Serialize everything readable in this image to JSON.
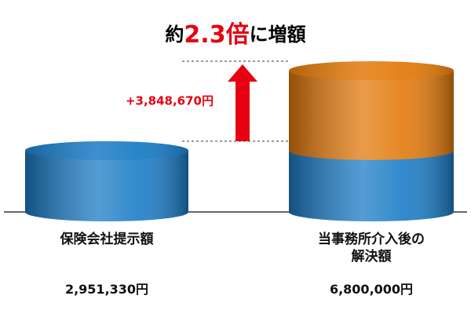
{
  "chart_data": {
    "type": "cylinder_stack",
    "title_parts": [
      "約",
      "2.3倍",
      "に増額"
    ],
    "categories": [
      "保険会社提示額",
      "当事務所介入後の解決額"
    ],
    "series": [
      {
        "color": "#1b7cc6",
        "values": [
          2951330,
          2951330
        ]
      },
      {
        "color": "#e27a0c",
        "values": [
          null,
          3848670
        ],
        "value_labels": [
          null,
          "+3,848,670円"
        ]
      }
    ],
    "totals": [
      2951330,
      6800000
    ],
    "total_labels": [
      "2,951,330円",
      "6,800,000円"
    ]
  }
}
